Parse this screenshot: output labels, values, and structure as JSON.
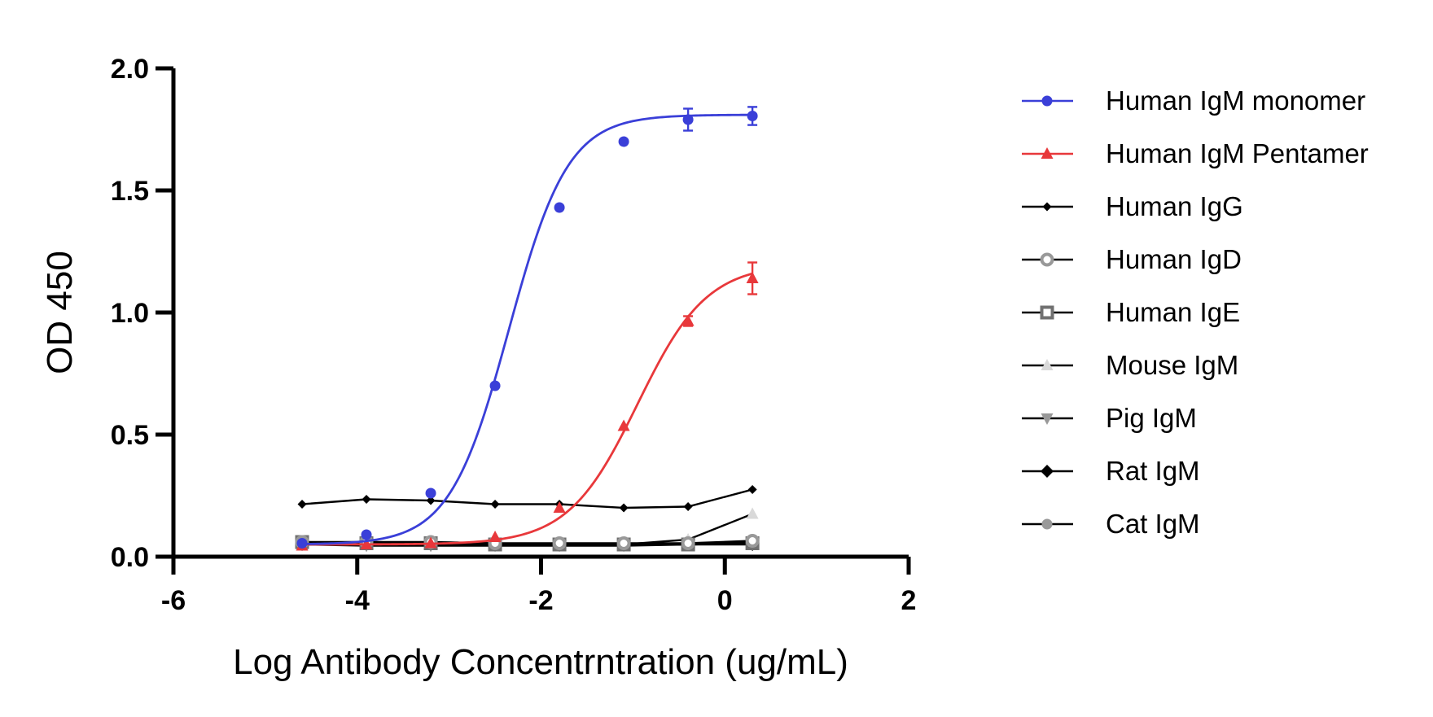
{
  "chart_data": {
    "type": "line",
    "title": "",
    "xlabel": "Log Antibody Concentrntration (ug/mL)",
    "ylabel": "OD 450",
    "xlim": [
      -6,
      2
    ],
    "ylim": [
      0,
      2
    ],
    "x_ticks": [
      -6,
      -4,
      -2,
      0,
      2
    ],
    "x_tick_labels": [
      "-6",
      "-4",
      "-2",
      "0",
      "2"
    ],
    "y_ticks": [
      0,
      0.5,
      1,
      1.5,
      2
    ],
    "y_tick_labels": [
      "0.0",
      "0.5",
      "1.0",
      "1.5",
      "2.0"
    ],
    "grid": false,
    "legend_position": "right",
    "x": [
      -4.6,
      -3.9,
      -3.2,
      -2.5,
      -1.8,
      -1.1,
      -0.4,
      0.3
    ],
    "series": [
      {
        "name": "Human IgM monomer",
        "color": "#3a3fd8",
        "marker": "circle",
        "fit": "sigmoid",
        "fit_params": {
          "bottom": 0.05,
          "top": 1.81,
          "logec50": -2.35,
          "hill": 1.35
        },
        "values": [
          0.055,
          0.09,
          0.26,
          0.7,
          1.43,
          1.7,
          1.79,
          1.805
        ],
        "errors": [
          0,
          0,
          0,
          0,
          0,
          0,
          0.045,
          0.037
        ]
      },
      {
        "name": "Human IgM Pentamer",
        "color": "#e8383b",
        "marker": "triangle-up",
        "fit": "sigmoid",
        "fit_params": {
          "bottom": 0.05,
          "top": 1.2,
          "logec50": -0.95,
          "hill": 1.15
        },
        "values": [
          0.045,
          0.05,
          0.055,
          0.08,
          0.2,
          0.535,
          0.965,
          1.14
        ],
        "errors": [
          0,
          0,
          0,
          0,
          0,
          0,
          0.02,
          0.065
        ]
      },
      {
        "name": "Human IgG",
        "color": "#000000",
        "marker": "diamond-small",
        "fit": "line",
        "values": [
          0.215,
          0.235,
          0.23,
          0.215,
          0.215,
          0.2,
          0.205,
          0.275
        ],
        "errors": []
      },
      {
        "name": "Human IgD",
        "color": "#999999",
        "marker": "circle-ring",
        "fit": "line",
        "values": [
          0.06,
          0.06,
          0.06,
          0.055,
          0.055,
          0.055,
          0.055,
          0.065
        ],
        "errors": []
      },
      {
        "name": "Human IgE",
        "color": "#707070",
        "marker": "square-ring",
        "fit": "line",
        "values": [
          0.06,
          0.055,
          0.055,
          0.05,
          0.05,
          0.05,
          0.05,
          0.055
        ],
        "errors": []
      },
      {
        "name": "Mouse IgM",
        "color": "#d9d9d9",
        "marker": "triangle-up",
        "fit": "line",
        "values": [
          0.05,
          0.05,
          0.05,
          0.05,
          0.05,
          0.05,
          0.07,
          0.175
        ],
        "errors": []
      },
      {
        "name": "Pig IgM",
        "color": "#999999",
        "marker": "triangle-down",
        "fit": "line",
        "values": [
          0.05,
          0.045,
          0.045,
          0.045,
          0.045,
          0.045,
          0.05,
          0.055
        ],
        "errors": []
      },
      {
        "name": "Rat IgM",
        "color": "#000000",
        "marker": "diamond",
        "fit": "line",
        "values": [
          0.05,
          0.05,
          0.05,
          0.05,
          0.05,
          0.05,
          0.05,
          0.05
        ],
        "errors": []
      },
      {
        "name": "Cat IgM",
        "color": "#999999",
        "marker": "circle",
        "fit": "line",
        "values": [
          0.05,
          0.05,
          0.05,
          0.05,
          0.05,
          0.05,
          0.05,
          0.06
        ],
        "errors": []
      }
    ]
  }
}
